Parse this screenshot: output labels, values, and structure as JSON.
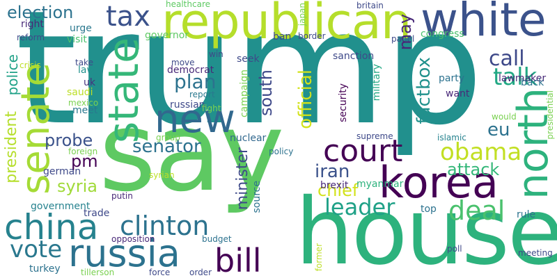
{
  "word_cloud": {
    "words": [
      {
        "text": "trump",
        "color": "#21908d"
      },
      {
        "text": "say",
        "color": "#5ec962"
      },
      {
        "text": "house",
        "color": "#2db27d"
      },
      {
        "text": "republican",
        "color": "#b5de2b"
      },
      {
        "text": "white",
        "color": "#3b528b"
      },
      {
        "text": "new",
        "color": "#31688e"
      },
      {
        "text": "korea",
        "color": "#440154"
      },
      {
        "text": "china",
        "color": "#26828e"
      },
      {
        "text": "russia",
        "color": "#2c728e"
      },
      {
        "text": "state",
        "color": "#35b779"
      },
      {
        "text": "senate",
        "color": "#a5db36"
      },
      {
        "text": "north",
        "color": "#2db27d"
      },
      {
        "text": "court",
        "color": "#440154"
      },
      {
        "text": "tax",
        "color": "#3b528b"
      },
      {
        "text": "bill",
        "color": "#440154"
      },
      {
        "text": "clinton",
        "color": "#2c728e"
      },
      {
        "text": "obama",
        "color": "#c2df23"
      },
      {
        "text": "deal",
        "color": "#4ac16d"
      },
      {
        "text": "leader",
        "color": "#1fa187"
      },
      {
        "text": "vote",
        "color": "#2a788e"
      },
      {
        "text": "talk",
        "color": "#22a884"
      },
      {
        "text": "call",
        "color": "#3e4989"
      },
      {
        "text": "may",
        "color": "#482878"
      },
      {
        "text": "election",
        "color": "#2c728e"
      },
      {
        "text": "factbox",
        "color": "#21918c"
      },
      {
        "text": "official",
        "color": "#d2e21b"
      },
      {
        "text": "plan",
        "color": "#2c728e"
      },
      {
        "text": "south",
        "color": "#3e4989"
      },
      {
        "text": "senator",
        "color": "#2c728e"
      },
      {
        "text": "eu",
        "color": "#2c728e"
      },
      {
        "text": "iran",
        "color": "#3b528b"
      },
      {
        "text": "attack",
        "color": "#35b779"
      },
      {
        "text": "chief",
        "color": "#d2e21b"
      },
      {
        "text": "probe",
        "color": "#3b528b"
      },
      {
        "text": "minister",
        "color": "#3e4989"
      },
      {
        "text": "syria",
        "color": "#a0da39"
      },
      {
        "text": "pm",
        "color": "#440154"
      },
      {
        "text": "president",
        "color": "#b5de2b"
      },
      {
        "text": "police",
        "color": "#1fa187"
      },
      {
        "text": "lawmaker",
        "color": "#482878"
      },
      {
        "text": "party",
        "color": "#2c728e"
      },
      {
        "text": "want",
        "color": "#482878"
      },
      {
        "text": "government",
        "color": "#26828e"
      },
      {
        "text": "turkey",
        "color": "#2c728e"
      },
      {
        "text": "governor",
        "color": "#5ec962"
      },
      {
        "text": "sanction",
        "color": "#3e4989"
      },
      {
        "text": "congress",
        "color": "#4ac16d"
      },
      {
        "text": "back",
        "color": "#2c728e"
      },
      {
        "text": "urge",
        "color": "#2a788e"
      },
      {
        "text": "visit",
        "color": "#4ac16d"
      },
      {
        "text": "seek",
        "color": "#3e4989"
      },
      {
        "text": "ban",
        "color": "#3e4989"
      },
      {
        "text": "right",
        "color": "#482878"
      },
      {
        "text": "uk",
        "color": "#46337e"
      },
      {
        "text": "law",
        "color": "#21918c"
      },
      {
        "text": "saudi",
        "color": "#bddf26"
      },
      {
        "text": "meet",
        "color": "#2a788e"
      },
      {
        "text": "russian",
        "color": "#3e4989"
      },
      {
        "text": "democrat",
        "color": "#482878"
      },
      {
        "text": "nuclear",
        "color": "#31688e"
      },
      {
        "text": "german",
        "color": "#3e4989"
      },
      {
        "text": "brexit",
        "color": "#482878"
      },
      {
        "text": "myanmar",
        "color": "#2db27d"
      },
      {
        "text": "campaign",
        "color": "#7ad151"
      },
      {
        "text": "security",
        "color": "#440154"
      },
      {
        "text": "military",
        "color": "#22a884"
      },
      {
        "text": "trade",
        "color": "#3e4989"
      },
      {
        "text": "opposition",
        "color": "#482878"
      },
      {
        "text": "top",
        "color": "#2c728e"
      },
      {
        "text": "rule",
        "color": "#2c728e"
      },
      {
        "text": "source",
        "color": "#2c728e"
      },
      {
        "text": "budget",
        "color": "#2c728e"
      },
      {
        "text": "policy",
        "color": "#2c728e"
      },
      {
        "text": "islamic",
        "color": "#26828e"
      },
      {
        "text": "putin",
        "color": "#482878"
      },
      {
        "text": "healthcare",
        "color": "#5ec962"
      },
      {
        "text": "britain",
        "color": "#3e4989"
      },
      {
        "text": "border",
        "color": "#3e4989"
      },
      {
        "text": "panel",
        "color": "#3e4989"
      },
      {
        "text": "reform",
        "color": "#3e4989"
      },
      {
        "text": "crisis",
        "color": "#bddf26"
      },
      {
        "text": "mexico",
        "color": "#7ad151"
      },
      {
        "text": "take",
        "color": "#3e4989"
      },
      {
        "text": "move",
        "color": "#3e4989"
      },
      {
        "text": "win",
        "color": "#3e4989"
      },
      {
        "text": "report",
        "color": "#2a788e"
      },
      {
        "text": "fight",
        "color": "#7ad151"
      },
      {
        "text": "japan",
        "color": "#7ad151"
      },
      {
        "text": "supreme",
        "color": "#3e4989"
      },
      {
        "text": "would",
        "color": "#7ad151"
      },
      {
        "text": "presidential",
        "color": "#7ad151"
      },
      {
        "text": "group",
        "color": "#7ad151"
      },
      {
        "text": "syrian",
        "color": "#bddf26"
      },
      {
        "text": "foreign",
        "color": "#7ad151"
      },
      {
        "text": "tillerson",
        "color": "#7ad151"
      },
      {
        "text": "force",
        "color": "#3e4989"
      },
      {
        "text": "order",
        "color": "#3e4989"
      },
      {
        "text": "former",
        "color": "#bddf26"
      },
      {
        "text": "poll",
        "color": "#3e4989"
      },
      {
        "text": "meeting",
        "color": "#3e4989"
      }
    ]
  }
}
